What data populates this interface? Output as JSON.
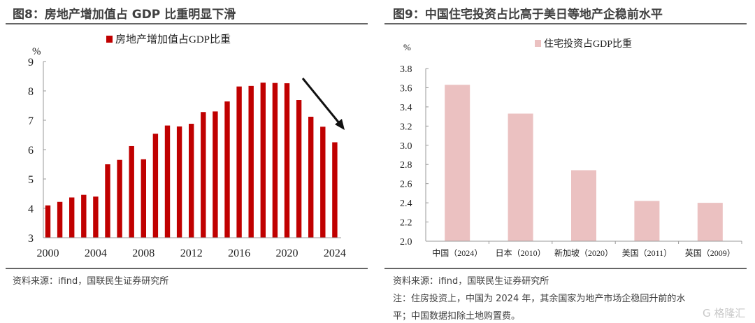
{
  "left": {
    "title": "图8：房地产增加值占 GDP 比重明显下滑",
    "source": "资料来源：ifind，国联民生证券研究所"
  },
  "right": {
    "title": "图9：中国住宅投资占比高于美日等地产企稳前水平",
    "source": "资料来源：ifind，国联民生证券研究所",
    "note_line1": "注：住房投资上，中国为 2024 年，其余国家为地产市场企稳回升前的水",
    "note_line2": "平；中国数据扣除土地购置费。"
  },
  "watermark": "格隆汇",
  "chart_data": [
    {
      "type": "bar",
      "title": "房地产增加值占 GDP 比重明显下滑",
      "ylabel": "%",
      "legend": "房地产增加值占GDP比重",
      "legend_position": "top-center",
      "color": "#C00000",
      "ylim": [
        3,
        9
      ],
      "yticks": [
        "3",
        "4",
        "5",
        "6",
        "7",
        "8",
        "9"
      ],
      "xticks": [
        "2000",
        "2004",
        "2008",
        "2012",
        "2016",
        "2020",
        "2024"
      ],
      "categories": [
        2000,
        2001,
        2002,
        2003,
        2004,
        2005,
        2006,
        2007,
        2008,
        2009,
        2010,
        2011,
        2012,
        2013,
        2014,
        2015,
        2016,
        2017,
        2018,
        2019,
        2020,
        2021,
        2022,
        2023,
        2024
      ],
      "values": [
        4.1,
        4.22,
        4.37,
        4.46,
        4.4,
        5.5,
        5.65,
        6.12,
        5.67,
        6.54,
        6.82,
        6.79,
        6.88,
        7.28,
        7.3,
        7.64,
        8.15,
        8.17,
        8.28,
        8.27,
        8.26,
        7.69,
        7.12,
        6.78,
        6.25
      ],
      "annotation": "downward-arrow"
    },
    {
      "type": "bar",
      "title": "中国住宅投资占比高于美日等地产企稳前水平",
      "ylabel": "%",
      "legend": "住宅投资占GDP比重",
      "legend_position": "top-center",
      "color": "#EBC1C1",
      "ylim": [
        2.0,
        3.8
      ],
      "yticks": [
        "2.0",
        "2.2",
        "2.4",
        "2.6",
        "2.8",
        "3.0",
        "3.2",
        "3.4",
        "3.6",
        "3.8"
      ],
      "categories": [
        "中国（2024）",
        "日本（2010）",
        "新加坡（2020）",
        "美国（2011）",
        "英国（2009）"
      ],
      "values": [
        3.63,
        3.33,
        2.74,
        2.42,
        2.4
      ]
    }
  ]
}
